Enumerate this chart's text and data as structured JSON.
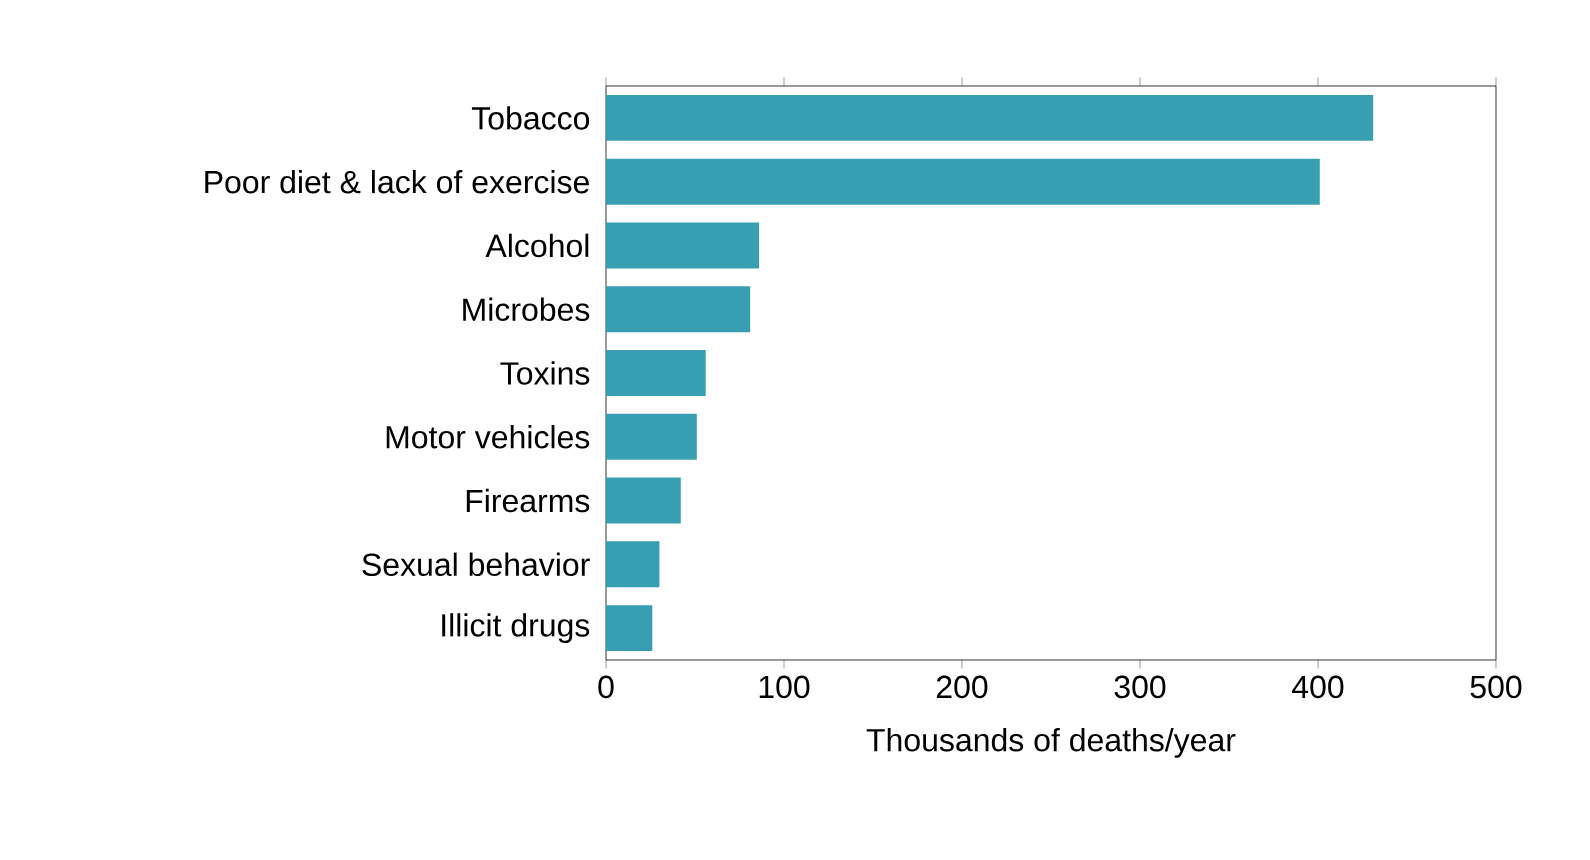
{
  "chart_data": {
    "type": "bar",
    "orientation": "horizontal",
    "xlabel": "Thousands of deaths/year",
    "categories": [
      "Tobacco",
      "Poor diet & lack of exercise",
      "Alcohol",
      "Microbes",
      "Toxins",
      "Motor vehicles",
      "Firearms",
      "Sexual behavior",
      "Illicit drugs"
    ],
    "values": [
      431,
      401,
      86,
      81,
      56,
      51,
      42,
      30,
      26
    ],
    "color": "#379fb1",
    "xlim": [
      0,
      500
    ],
    "xticks": [
      0,
      100,
      200,
      300,
      400,
      500
    ]
  }
}
